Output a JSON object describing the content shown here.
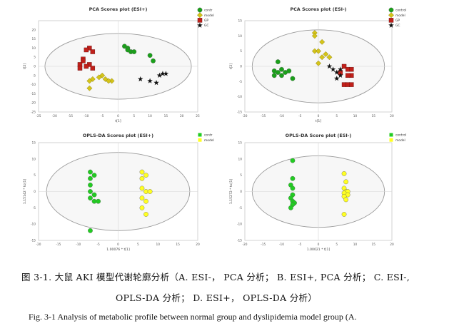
{
  "chart_data": [
    {
      "type": "scatter",
      "title": "PCA Scores plot (ESI+)",
      "xlabel": "t[1]",
      "ylabel": "t[2]",
      "xlim": [
        -25,
        25
      ],
      "ylim": [
        -25,
        25
      ],
      "xticks": [
        -25,
        -20,
        -15,
        -10,
        -5,
        0,
        5,
        10,
        15,
        20,
        25
      ],
      "yticks": [
        20,
        15,
        10,
        5,
        0,
        -5,
        -10,
        -15,
        -20,
        -25
      ],
      "grid": false,
      "ellipse": {
        "cx": 0,
        "cy": 0,
        "rx": 23,
        "ry": 18
      },
      "legend_position": "top-right",
      "series": [
        {
          "name": "contr",
          "marker": "circle",
          "color": "#1aa01a",
          "points": [
            [
              2,
              11
            ],
            [
              3,
              10
            ],
            [
              3,
              9
            ],
            [
              4,
              8
            ],
            [
              5,
              8
            ],
            [
              10,
              6
            ],
            [
              11,
              3
            ]
          ]
        },
        {
          "name": "model",
          "marker": "diamond",
          "color": "#d4c41a",
          "points": [
            [
              -5,
              -5
            ],
            [
              -6,
              -6
            ],
            [
              -4,
              -7
            ],
            [
              -8,
              -7
            ],
            [
              -9,
              -8
            ],
            [
              -2,
              -8
            ],
            [
              -3,
              -8
            ],
            [
              -9,
              -12
            ]
          ]
        },
        {
          "name": "GP",
          "marker": "square",
          "color": "#c0201a",
          "points": [
            [
              -9,
              10
            ],
            [
              -10,
              9
            ],
            [
              -8,
              8
            ],
            [
              -11,
              4
            ],
            [
              -11,
              3
            ],
            [
              -12,
              1
            ],
            [
              -9,
              1
            ],
            [
              -10,
              0
            ],
            [
              -12,
              -1
            ],
            [
              -8,
              -1
            ]
          ]
        },
        {
          "name": "GC",
          "marker": "star",
          "color": "#111111",
          "points": [
            [
              7,
              -7
            ],
            [
              10,
              -8
            ],
            [
              14,
              -4
            ],
            [
              15,
              -4
            ],
            [
              13,
              -5
            ],
            [
              12,
              -9
            ]
          ]
        }
      ]
    },
    {
      "type": "scatter",
      "title": "PCA Scores plot (ESI-)",
      "xlabel": "t[1]",
      "ylabel": "t[2]",
      "xlim": [
        -20,
        20
      ],
      "ylim": [
        -15,
        15
      ],
      "xticks": [
        -20,
        -15,
        -10,
        -5,
        0,
        5,
        10,
        15,
        20
      ],
      "yticks": [
        15,
        10,
        5,
        0,
        -5,
        -10,
        -15
      ],
      "grid": false,
      "ellipse": {
        "cx": 0,
        "cy": 0,
        "rx": 18,
        "ry": 12
      },
      "legend_position": "top-right",
      "series": [
        {
          "name": "control",
          "marker": "circle",
          "color": "#1aa01a",
          "points": [
            [
              -11,
              1.5
            ],
            [
              -10,
              -1
            ],
            [
              -12,
              -1.5
            ],
            [
              -8,
              -1.5
            ],
            [
              -11,
              -2
            ],
            [
              -9,
              -2
            ],
            [
              -12,
              -3
            ],
            [
              -10,
              -3
            ],
            [
              -7,
              -4
            ]
          ]
        },
        {
          "name": "model",
          "marker": "diamond",
          "color": "#d4c41a",
          "points": [
            [
              -1,
              11
            ],
            [
              -1,
              10
            ],
            [
              1,
              8
            ],
            [
              -1,
              5
            ],
            [
              0,
              5
            ],
            [
              2,
              4
            ],
            [
              1,
              3
            ],
            [
              3,
              3
            ],
            [
              0,
              1
            ]
          ]
        },
        {
          "name": "GP",
          "marker": "square",
          "color": "#c0201a",
          "points": [
            [
              7,
              0
            ],
            [
              8,
              -1
            ],
            [
              9,
              -1
            ],
            [
              6,
              -2
            ],
            [
              9,
              -3
            ],
            [
              8,
              -3
            ],
            [
              7,
              -6
            ],
            [
              8,
              -6
            ],
            [
              9,
              -6
            ]
          ]
        },
        {
          "name": "GC",
          "marker": "star",
          "color": "#111111",
          "points": [
            [
              3,
              0
            ],
            [
              4,
              -1
            ],
            [
              6,
              -1
            ],
            [
              5,
              -2
            ],
            [
              6,
              -3
            ],
            [
              5,
              -4
            ]
          ]
        }
      ]
    },
    {
      "type": "scatter",
      "title": "OPLS-DA Scores plot (ESI+)",
      "xlabel": "1.00076 * t[1]",
      "ylabel": "1.15142 * to[1]",
      "xlim": [
        -20,
        20
      ],
      "ylim": [
        -15,
        15
      ],
      "xticks": [
        -20,
        -15,
        -10,
        -5,
        0,
        5,
        10,
        15,
        20
      ],
      "yticks": [
        15,
        10,
        5,
        0,
        -5,
        -10,
        -15
      ],
      "grid": false,
      "ellipse": {
        "cx": 0,
        "cy": 0,
        "rx": 18,
        "ry": 12
      },
      "legend_position": "top-right",
      "series": [
        {
          "name": "contr",
          "marker": "circle",
          "color": "#22cc22",
          "points": [
            [
              -7,
              6
            ],
            [
              -6,
              5
            ],
            [
              -7,
              4
            ],
            [
              -7,
              2
            ],
            [
              -7,
              0
            ],
            [
              -6,
              -1
            ],
            [
              -7,
              -2
            ],
            [
              -6,
              -3
            ],
            [
              -5,
              -3
            ],
            [
              -7,
              -12
            ]
          ]
        },
        {
          "name": "model",
          "marker": "circle",
          "color": "#ffff22",
          "points": [
            [
              6,
              6
            ],
            [
              7,
              5
            ],
            [
              6,
              4
            ],
            [
              6,
              1
            ],
            [
              7,
              0
            ],
            [
              8,
              0
            ],
            [
              6,
              -2
            ],
            [
              7,
              -3
            ],
            [
              6,
              -5
            ],
            [
              7,
              -7
            ]
          ]
        }
      ]
    },
    {
      "type": "scatter",
      "title": "OPLS-DA Score plot  (ESI-)",
      "xlabel": "1.00021 * t[1]",
      "ylabel": "1.15272 * to[1]",
      "xlim": [
        -20,
        20
      ],
      "ylim": [
        -15,
        15
      ],
      "xticks": [
        -20,
        -15,
        -10,
        -5,
        0,
        5,
        10,
        15,
        20
      ],
      "yticks": [
        15,
        10,
        5,
        0,
        -5,
        -10,
        -15
      ],
      "grid": false,
      "ellipse": {
        "cx": 0,
        "cy": 0,
        "rx": 18,
        "ry": 11
      },
      "legend_position": "top-right",
      "series": [
        {
          "name": "control",
          "marker": "circle",
          "color": "#22cc22",
          "points": [
            [
              -7,
              9.5
            ],
            [
              -7,
              4
            ],
            [
              -7.5,
              2
            ],
            [
              -7,
              1
            ],
            [
              -7,
              -1
            ],
            [
              -7.5,
              -2
            ],
            [
              -7,
              -3
            ],
            [
              -6.5,
              -3.5
            ],
            [
              -7,
              -4
            ],
            [
              -7.5,
              -5
            ]
          ]
        },
        {
          "name": "model",
          "marker": "circle",
          "color": "#ffff22",
          "points": [
            [
              7,
              5.5
            ],
            [
              7.5,
              3
            ],
            [
              7,
              1
            ],
            [
              7.5,
              0
            ],
            [
              8,
              0
            ],
            [
              7,
              -0.5
            ],
            [
              8,
              -1
            ],
            [
              7,
              -1.5
            ],
            [
              7.5,
              -2.5
            ],
            [
              7,
              -7
            ]
          ]
        }
      ]
    }
  ],
  "captions": {
    "cn": "图  3-1.  大鼠 AKI 模型代谢轮廓分析（A. ESI-，  PCA  分析；  B. ESI+, PCA  分析；  C. ESI-,",
    "cn2": "OPLS-DA  分析；    D. ESI+，   OPLS-DA  分析）",
    "en": "Fig. 3-1 Analysis of metabolic profile between normal group and dyslipidemia model group (A."
  }
}
